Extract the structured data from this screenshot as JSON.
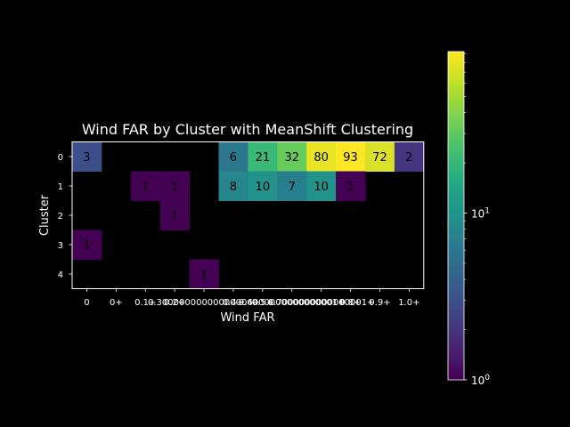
{
  "chart_data": {
    "type": "heatmap",
    "title": "Wind FAR by Cluster with MeanShift Clustering",
    "xlabel": "Wind FAR",
    "ylabel": "Cluster",
    "x_categories": [
      "0",
      "0+",
      "0.1+",
      "0.2+",
      "0.30000000000000004+",
      "0.4+",
      "0.5+",
      "0.6000000000000001+",
      "0.7000000000000001+",
      "0.8+",
      "0.9+",
      "1.0+"
    ],
    "x_tick_labels_displayed": [
      "0",
      "0+",
      "0.1+",
      "0.2+",
      "0.30000000000000004+",
      "0.4+",
      "0.5+",
      "0.6000000000000001+",
      "0.7000000000000001+",
      "0.8+",
      "0.9+",
      "1.0+"
    ],
    "y_categories": [
      "0",
      "1",
      "2",
      "3",
      "4"
    ],
    "values": [
      [
        3,
        null,
        null,
        null,
        null,
        6,
        21,
        32,
        80,
        93,
        72,
        2
      ],
      [
        null,
        null,
        1,
        1,
        null,
        8,
        10,
        7,
        10,
        1,
        null,
        null
      ],
      [
        null,
        null,
        null,
        1,
        null,
        null,
        null,
        null,
        null,
        null,
        null,
        null
      ],
      [
        1,
        null,
        null,
        null,
        null,
        null,
        null,
        null,
        null,
        null,
        null,
        null
      ],
      [
        null,
        null,
        null,
        null,
        1,
        null,
        null,
        null,
        null,
        null,
        null,
        null
      ]
    ],
    "colormap": "viridis",
    "color_scale": "log",
    "color_range": [
      1,
      93
    ],
    "colorbar": {
      "ticks": [
        {
          "base": "10",
          "exp": "0",
          "value": 1
        },
        {
          "base": "10",
          "exp": "1",
          "value": 10
        }
      ]
    },
    "background_color": "#000000",
    "text_color": "#ffffff",
    "cell_label_color": "#000000",
    "grid": false
  }
}
